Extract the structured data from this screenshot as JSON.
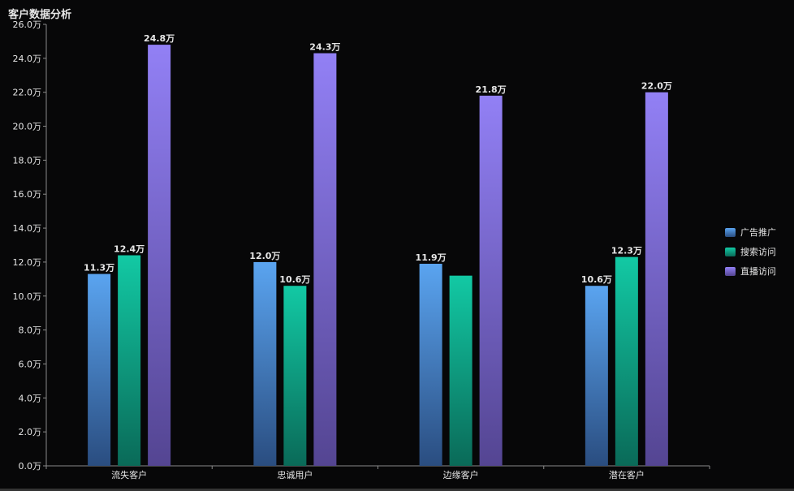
{
  "chart_data": {
    "type": "bar",
    "title": "客户数据分析",
    "categories": [
      "流失客户",
      "忠诚用户",
      "边缘客户",
      "潜在客户"
    ],
    "series": [
      {
        "name": "广告推广",
        "values": [
          11.3,
          12.0,
          11.9,
          10.6
        ],
        "labels": [
          "11.3万",
          "12.0万",
          "11.9万",
          "10.6万"
        ],
        "color_top": "#5aa4f0",
        "color_bottom": "#2a4d80"
      },
      {
        "name": "搜索访问",
        "values": [
          12.4,
          10.6,
          11.2,
          12.3
        ],
        "labels": [
          "12.4万",
          "10.6万",
          "",
          "12.3万"
        ],
        "color_top": "#12c9a4",
        "color_bottom": "#0a6a58"
      },
      {
        "name": "直播访问",
        "values": [
          24.8,
          24.3,
          21.8,
          22.0
        ],
        "labels": [
          "24.8万",
          "24.3万",
          "21.8万",
          "22.0万"
        ],
        "color_top": "#9280f5",
        "color_bottom": "#544592"
      }
    ],
    "yticks": [
      "0.0万",
      "2.0万",
      "4.0万",
      "6.0万",
      "8.0万",
      "10.0万",
      "12.0万",
      "14.0万",
      "16.0万",
      "18.0万",
      "20.0万",
      "22.0万",
      "24.0万",
      "26.0万"
    ],
    "ylim": [
      0,
      26
    ],
    "xlabel": "",
    "ylabel": "",
    "grid": false,
    "legend_position": "right"
  }
}
